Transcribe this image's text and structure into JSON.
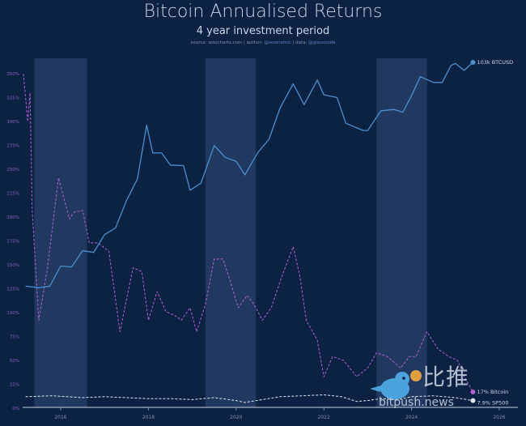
{
  "chart_data": {
    "type": "line",
    "title": "Bitcoin Annualised Returns",
    "subtitle": "4 year investment period",
    "source": {
      "prefix": "source: ",
      "site": "woocharts.com",
      "sep1": " | author: ",
      "author": "@woonomic",
      "sep2": " | data: ",
      "data": "@glassnode"
    },
    "y_ticks": [
      "0%",
      "25%",
      "50%",
      "75%",
      "100%",
      "125%",
      "150%",
      "175%",
      "200%",
      "225%",
      "250%",
      "275%",
      "300%",
      "325%",
      "350%"
    ],
    "ylim": [
      0,
      350
    ],
    "x_ticks": [
      "2016",
      "2018",
      "2020",
      "2022",
      "2024",
      "2026"
    ],
    "xlim": [
      2015.0,
      2026.3
    ],
    "grid": false,
    "legend_placement": "right-end-labels",
    "shaded_periods": [
      [
        2015.4,
        2016.6
      ],
      [
        2019.3,
        2020.45
      ],
      [
        2023.2,
        2024.35
      ]
    ],
    "series": [
      {
        "name": "Bitcoin",
        "label": "17% Bitcoin",
        "color": "#b45fd6",
        "style": "dashed",
        "x": [
          2015.15,
          2015.25,
          2015.3,
          2015.35,
          2015.5,
          2015.7,
          2015.95,
          2016.2,
          2016.3,
          2016.5,
          2016.65,
          2016.85,
          2017.1,
          2017.35,
          2017.65,
          2017.85,
          2018.0,
          2018.2,
          2018.4,
          2018.6,
          2018.75,
          2018.95,
          2019.1,
          2019.3,
          2019.5,
          2019.7,
          2019.85,
          2020.05,
          2020.25,
          2020.4,
          2020.6,
          2020.8,
          2021.05,
          2021.3,
          2021.45,
          2021.6,
          2021.85,
          2022.0,
          2022.2,
          2022.45,
          2022.75,
          2023.0,
          2023.2,
          2023.45,
          2023.75,
          2023.95,
          2024.1,
          2024.35,
          2024.6,
          2024.85,
          2025.05,
          2025.2,
          2025.4
        ],
        "y": [
          350,
          300,
          330,
          207,
          92,
          147,
          241,
          198,
          205,
          207,
          173,
          173,
          164,
          80,
          147,
          143,
          92,
          122,
          101,
          97,
          92,
          105,
          80,
          109,
          156,
          156,
          135,
          105,
          118,
          109,
          92,
          105,
          139,
          169,
          139,
          92,
          71,
          33,
          54,
          50,
          33,
          42,
          58,
          54,
          42,
          54,
          54,
          80,
          62,
          54,
          50,
          33,
          17
        ]
      },
      {
        "name": "SP500",
        "label": "7.9% SP500",
        "color": "#dfe6f0",
        "style": "dashed",
        "x": [
          2015.2,
          2015.8,
          2016.5,
          2017.0,
          2017.5,
          2018.0,
          2018.5,
          2019.0,
          2019.5,
          2020.0,
          2020.2,
          2020.6,
          2021.0,
          2021.5,
          2022.0,
          2022.4,
          2022.75,
          2023.0,
          2023.3,
          2023.7,
          2024.0,
          2024.5,
          2025.0,
          2025.4
        ],
        "y": [
          12,
          13,
          11,
          12,
          11,
          10,
          10,
          9,
          11,
          8,
          6,
          9,
          12,
          13,
          14,
          12,
          7,
          8,
          10,
          9,
          12,
          13,
          11,
          7.9
        ]
      },
      {
        "name": "BTCUSD",
        "label": "103k BTCUSD",
        "color": "#4b8fd1",
        "style": "solid",
        "scale": "log (unlabelled)",
        "x": [
          2015.2,
          2015.5,
          2015.75,
          2016.0,
          2016.25,
          2016.5,
          2016.75,
          2017.0,
          2017.25,
          2017.5,
          2017.75,
          2017.96,
          2018.1,
          2018.3,
          2018.5,
          2018.8,
          2018.95,
          2019.2,
          2019.5,
          2019.75,
          2020.0,
          2020.2,
          2020.5,
          2020.75,
          2021.0,
          2021.3,
          2021.55,
          2021.85,
          2022.0,
          2022.3,
          2022.5,
          2022.9,
          2023.0,
          2023.3,
          2023.6,
          2023.8,
          2024.0,
          2024.2,
          2024.5,
          2024.7,
          2024.9,
          2025.0,
          2025.2,
          2025.4
        ],
        "y": [
          250,
          240,
          250,
          430,
          420,
          650,
          620,
          1000,
          1200,
          2500,
          4500,
          19000,
          9000,
          9000,
          6500,
          6400,
          3300,
          4000,
          11000,
          8000,
          7200,
          5000,
          9200,
          13000,
          30000,
          58000,
          33000,
          64000,
          43000,
          40000,
          20000,
          16500,
          16500,
          28000,
          29000,
          27000,
          42000,
          70000,
          60000,
          60000,
          95000,
          100000,
          83000,
          103000
        ]
      }
    ]
  },
  "watermark": {
    "chinese": "比推",
    "domain": "bitpush.news"
  }
}
